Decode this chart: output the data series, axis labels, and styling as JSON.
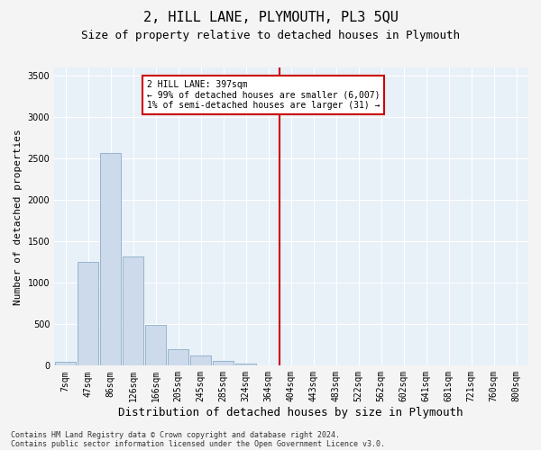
{
  "title": "2, HILL LANE, PLYMOUTH, PL3 5QU",
  "subtitle": "Size of property relative to detached houses in Plymouth",
  "xlabel": "Distribution of detached houses by size in Plymouth",
  "ylabel": "Number of detached properties",
  "categories": [
    "7sqm",
    "47sqm",
    "86sqm",
    "126sqm",
    "166sqm",
    "205sqm",
    "245sqm",
    "285sqm",
    "324sqm",
    "364sqm",
    "404sqm",
    "443sqm",
    "483sqm",
    "522sqm",
    "562sqm",
    "602sqm",
    "641sqm",
    "681sqm",
    "721sqm",
    "760sqm",
    "800sqm"
  ],
  "bar_values": [
    50,
    1250,
    2570,
    1320,
    490,
    195,
    120,
    55,
    25,
    5,
    0,
    0,
    0,
    0,
    0,
    0,
    0,
    0,
    0,
    0,
    0
  ],
  "bar_color": "#cddaeb",
  "bar_edgecolor": "#8aaec8",
  "vline_x_index": 10,
  "vline_color": "#cc0000",
  "annotation_text": "2 HILL LANE: 397sqm\n← 99% of detached houses are smaller (6,007)\n1% of semi-detached houses are larger (31) →",
  "annotation_box_edgecolor": "#cc0000",
  "ylim": [
    0,
    3600
  ],
  "yticks": [
    0,
    500,
    1000,
    1500,
    2000,
    2500,
    3000,
    3500
  ],
  "background_color": "#e8f0f8",
  "grid_color": "#ffffff",
  "footer_line1": "Contains HM Land Registry data © Crown copyright and database right 2024.",
  "footer_line2": "Contains public sector information licensed under the Open Government Licence v3.0.",
  "title_fontsize": 11,
  "subtitle_fontsize": 9,
  "tick_fontsize": 7,
  "ylabel_fontsize": 8,
  "xlabel_fontsize": 9,
  "footer_fontsize": 6,
  "fig_background": "#f4f4f4"
}
